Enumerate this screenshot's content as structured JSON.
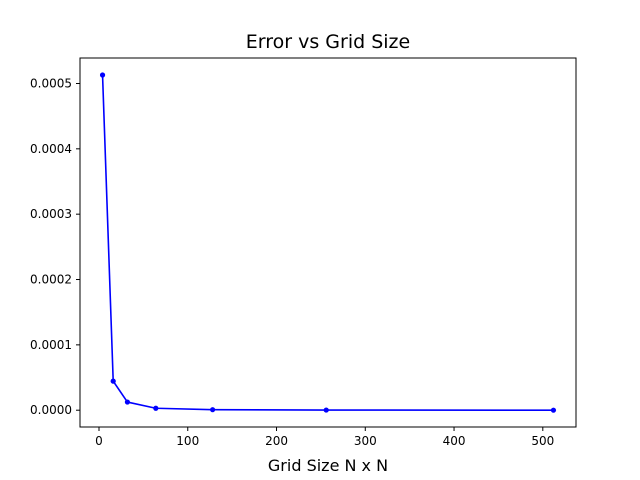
{
  "chart_data": {
    "type": "line",
    "title": "Error vs Grid Size",
    "xlabel": "Grid Size N x N",
    "ylabel": "",
    "x": [
      4,
      16,
      32,
      64,
      128,
      256,
      512
    ],
    "series": [
      {
        "values": [
          0.000513,
          4.45e-05,
          1.25e-05,
          3e-06,
          8e-07,
          2e-07,
          5e-08
        ],
        "color": "#0000ff",
        "marker": "circle"
      }
    ],
    "xlim": [
      -21.4,
      537.4
    ],
    "ylim": [
      -2.57e-05,
      0.000539
    ],
    "xticks": [
      0,
      100,
      200,
      300,
      400,
      500
    ],
    "xtick_labels": [
      "0",
      "100",
      "200",
      "300",
      "400",
      "500"
    ],
    "yticks": [
      0,
      0.0001,
      0.0002,
      0.0003,
      0.0004,
      0.0005
    ],
    "ytick_labels": [
      "0.0000",
      "0.0001",
      "0.0002",
      "0.0003",
      "0.0004",
      "0.0005"
    ],
    "grid": false,
    "legend": "none"
  }
}
